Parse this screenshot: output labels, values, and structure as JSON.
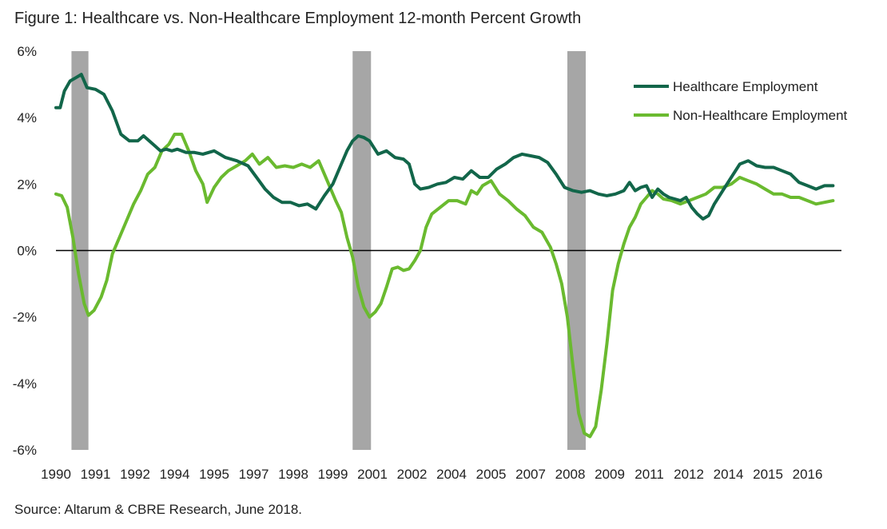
{
  "title": "Figure 1: Healthcare vs. Non-Healthcare Employment 12-month Percent Growth",
  "source": "Source: Altarum & CBRE Research, June 2018.",
  "colors": {
    "healthcare": "#12664a",
    "non_healthcare": "#6aba2f",
    "recession": "#a6a6a6",
    "zero_line": "#000000"
  },
  "chart_data": {
    "type": "line",
    "title": "Figure 1: Healthcare vs. Non-Healthcare Employment 12-month Percent Growth",
    "xlabel": "",
    "ylabel": "",
    "xlim": [
      1990.0,
      2017.8
    ],
    "ylim": [
      -6,
      6
    ],
    "y_ticks": [
      -6,
      -4,
      -2,
      0,
      2,
      4,
      6
    ],
    "y_tick_labels": [
      "-6%",
      "-4%",
      "-2%",
      "0%",
      "2%",
      "4%",
      "6%"
    ],
    "x_tick_labels": [
      "1990",
      "1991",
      "1992",
      "1994",
      "1995",
      "1997",
      "1998",
      "1999",
      "2001",
      "2002",
      "2004",
      "2005",
      "2007",
      "2008",
      "2009",
      "2011",
      "2012",
      "2014",
      "2015",
      "2016"
    ],
    "x_tick_values": [
      1990.0,
      1991.4,
      1992.8,
      1994.2,
      1995.6,
      1997.0,
      1998.4,
      1999.8,
      2001.2,
      2002.6,
      2004.0,
      2005.4,
      2006.8,
      2008.2,
      2009.6,
      2011.0,
      2012.4,
      2013.8,
      2015.2,
      2016.6
    ],
    "grid": false,
    "legend_position": "top-right",
    "recession_bands": [
      [
        2000.5,
        2001.15
      ],
      [
        2008.1,
        2008.75
      ],
      [
        1990.55,
        1991.15
      ]
    ],
    "series": [
      {
        "name": "Healthcare Employment",
        "color": "#12664a",
        "points": [
          [
            1990.0,
            4.3
          ],
          [
            1990.15,
            4.3
          ],
          [
            1990.3,
            4.8
          ],
          [
            1990.5,
            5.1
          ],
          [
            1990.7,
            5.2
          ],
          [
            1990.9,
            5.3
          ],
          [
            1991.1,
            4.9
          ],
          [
            1991.4,
            4.85
          ],
          [
            1991.7,
            4.7
          ],
          [
            1992.0,
            4.2
          ],
          [
            1992.3,
            3.5
          ],
          [
            1992.6,
            3.3
          ],
          [
            1992.9,
            3.3
          ],
          [
            1993.1,
            3.45
          ],
          [
            1993.3,
            3.3
          ],
          [
            1993.5,
            3.15
          ],
          [
            1993.7,
            3.0
          ],
          [
            1993.9,
            3.05
          ],
          [
            1994.1,
            3.0
          ],
          [
            1994.3,
            3.05
          ],
          [
            1994.6,
            2.95
          ],
          [
            1994.9,
            2.95
          ],
          [
            1995.2,
            2.9
          ],
          [
            1995.6,
            3.0
          ],
          [
            1996.0,
            2.8
          ],
          [
            1996.4,
            2.7
          ],
          [
            1996.8,
            2.55
          ],
          [
            1997.1,
            2.2
          ],
          [
            1997.4,
            1.85
          ],
          [
            1997.7,
            1.6
          ],
          [
            1998.0,
            1.45
          ],
          [
            1998.3,
            1.45
          ],
          [
            1998.6,
            1.35
          ],
          [
            1998.9,
            1.4
          ],
          [
            1999.2,
            1.25
          ],
          [
            1999.5,
            1.65
          ],
          [
            1999.8,
            2.0
          ],
          [
            2000.1,
            2.6
          ],
          [
            2000.3,
            3.0
          ],
          [
            2000.5,
            3.3
          ],
          [
            2000.7,
            3.45
          ],
          [
            2000.9,
            3.4
          ],
          [
            2001.1,
            3.3
          ],
          [
            2001.4,
            2.9
          ],
          [
            2001.7,
            3.0
          ],
          [
            2002.0,
            2.8
          ],
          [
            2002.3,
            2.75
          ],
          [
            2002.5,
            2.6
          ],
          [
            2002.7,
            2.0
          ],
          [
            2002.9,
            1.85
          ],
          [
            2003.2,
            1.9
          ],
          [
            2003.5,
            2.0
          ],
          [
            2003.8,
            2.05
          ],
          [
            2004.1,
            2.2
          ],
          [
            2004.4,
            2.15
          ],
          [
            2004.7,
            2.4
          ],
          [
            2005.0,
            2.2
          ],
          [
            2005.3,
            2.2
          ],
          [
            2005.6,
            2.45
          ],
          [
            2005.9,
            2.6
          ],
          [
            2006.2,
            2.8
          ],
          [
            2006.5,
            2.9
          ],
          [
            2006.8,
            2.85
          ],
          [
            2007.1,
            2.8
          ],
          [
            2007.4,
            2.65
          ],
          [
            2007.7,
            2.3
          ],
          [
            2008.0,
            1.9
          ],
          [
            2008.3,
            1.8
          ],
          [
            2008.6,
            1.75
          ],
          [
            2008.9,
            1.8
          ],
          [
            2009.2,
            1.7
          ],
          [
            2009.5,
            1.65
          ],
          [
            2009.8,
            1.7
          ],
          [
            2010.1,
            1.8
          ],
          [
            2010.3,
            2.05
          ],
          [
            2010.5,
            1.8
          ],
          [
            2010.7,
            1.9
          ],
          [
            2010.9,
            1.95
          ],
          [
            2011.1,
            1.6
          ],
          [
            2011.3,
            1.85
          ],
          [
            2011.5,
            1.7
          ],
          [
            2011.7,
            1.6
          ],
          [
            2011.9,
            1.55
          ],
          [
            2012.1,
            1.5
          ],
          [
            2012.3,
            1.6
          ],
          [
            2012.5,
            1.3
          ],
          [
            2012.7,
            1.1
          ],
          [
            2012.9,
            0.95
          ],
          [
            2013.1,
            1.05
          ],
          [
            2013.3,
            1.4
          ],
          [
            2013.6,
            1.8
          ],
          [
            2013.9,
            2.2
          ],
          [
            2014.2,
            2.6
          ],
          [
            2014.5,
            2.7
          ],
          [
            2014.8,
            2.55
          ],
          [
            2015.1,
            2.5
          ],
          [
            2015.4,
            2.5
          ],
          [
            2015.7,
            2.4
          ],
          [
            2016.0,
            2.3
          ],
          [
            2016.3,
            2.05
          ],
          [
            2016.6,
            1.95
          ],
          [
            2016.9,
            1.85
          ],
          [
            2017.2,
            1.95
          ],
          [
            2017.5,
            1.95
          ]
        ]
      },
      {
        "name": "Non-Healthcare Employment",
        "color": "#6aba2f",
        "points": [
          [
            1990.0,
            1.7
          ],
          [
            1990.2,
            1.65
          ],
          [
            1990.4,
            1.3
          ],
          [
            1990.6,
            0.4
          ],
          [
            1990.8,
            -0.7
          ],
          [
            1991.0,
            -1.6
          ],
          [
            1991.15,
            -1.95
          ],
          [
            1991.35,
            -1.8
          ],
          [
            1991.6,
            -1.4
          ],
          [
            1991.8,
            -0.9
          ],
          [
            1992.0,
            -0.1
          ],
          [
            1992.25,
            0.4
          ],
          [
            1992.5,
            0.9
          ],
          [
            1992.75,
            1.4
          ],
          [
            1993.0,
            1.8
          ],
          [
            1993.25,
            2.3
          ],
          [
            1993.5,
            2.5
          ],
          [
            1993.75,
            3.0
          ],
          [
            1994.0,
            3.2
          ],
          [
            1994.2,
            3.5
          ],
          [
            1994.45,
            3.5
          ],
          [
            1994.7,
            3.0
          ],
          [
            1994.95,
            2.4
          ],
          [
            1995.2,
            2.0
          ],
          [
            1995.35,
            1.45
          ],
          [
            1995.6,
            1.9
          ],
          [
            1995.85,
            2.2
          ],
          [
            1996.1,
            2.4
          ],
          [
            1996.4,
            2.55
          ],
          [
            1996.7,
            2.7
          ],
          [
            1996.95,
            2.9
          ],
          [
            1997.2,
            2.6
          ],
          [
            1997.5,
            2.8
          ],
          [
            1997.8,
            2.5
          ],
          [
            1998.1,
            2.55
          ],
          [
            1998.4,
            2.5
          ],
          [
            1998.7,
            2.6
          ],
          [
            1999.0,
            2.5
          ],
          [
            1999.3,
            2.7
          ],
          [
            1999.6,
            2.1
          ],
          [
            1999.9,
            1.5
          ],
          [
            2000.1,
            1.15
          ],
          [
            2000.3,
            0.4
          ],
          [
            2000.5,
            -0.2
          ],
          [
            2000.7,
            -1.1
          ],
          [
            2000.9,
            -1.7
          ],
          [
            2001.1,
            -2.0
          ],
          [
            2001.3,
            -1.85
          ],
          [
            2001.5,
            -1.6
          ],
          [
            2001.7,
            -1.1
          ],
          [
            2001.9,
            -0.55
          ],
          [
            2002.1,
            -0.5
          ],
          [
            2002.3,
            -0.6
          ],
          [
            2002.5,
            -0.55
          ],
          [
            2002.7,
            -0.3
          ],
          [
            2002.9,
            0.0
          ],
          [
            2003.1,
            0.7
          ],
          [
            2003.3,
            1.1
          ],
          [
            2003.6,
            1.3
          ],
          [
            2003.9,
            1.5
          ],
          [
            2004.2,
            1.5
          ],
          [
            2004.5,
            1.4
          ],
          [
            2004.7,
            1.8
          ],
          [
            2004.9,
            1.7
          ],
          [
            2005.1,
            1.95
          ],
          [
            2005.4,
            2.1
          ],
          [
            2005.7,
            1.7
          ],
          [
            2006.0,
            1.5
          ],
          [
            2006.3,
            1.25
          ],
          [
            2006.6,
            1.05
          ],
          [
            2006.9,
            0.7
          ],
          [
            2007.2,
            0.55
          ],
          [
            2007.5,
            0.1
          ],
          [
            2007.7,
            -0.4
          ],
          [
            2007.9,
            -1.0
          ],
          [
            2008.1,
            -2.0
          ],
          [
            2008.3,
            -3.5
          ],
          [
            2008.5,
            -4.9
          ],
          [
            2008.7,
            -5.5
          ],
          [
            2008.9,
            -5.6
          ],
          [
            2009.1,
            -5.3
          ],
          [
            2009.3,
            -4.2
          ],
          [
            2009.5,
            -2.8
          ],
          [
            2009.7,
            -1.2
          ],
          [
            2009.9,
            -0.4
          ],
          [
            2010.1,
            0.2
          ],
          [
            2010.3,
            0.7
          ],
          [
            2010.5,
            1.0
          ],
          [
            2010.7,
            1.4
          ],
          [
            2010.9,
            1.6
          ],
          [
            2011.1,
            1.8
          ],
          [
            2011.3,
            1.7
          ],
          [
            2011.5,
            1.55
          ],
          [
            2011.8,
            1.5
          ],
          [
            2012.1,
            1.4
          ],
          [
            2012.4,
            1.5
          ],
          [
            2012.7,
            1.6
          ],
          [
            2013.0,
            1.7
          ],
          [
            2013.3,
            1.9
          ],
          [
            2013.6,
            1.9
          ],
          [
            2013.9,
            2.0
          ],
          [
            2014.2,
            2.2
          ],
          [
            2014.5,
            2.1
          ],
          [
            2014.8,
            2.0
          ],
          [
            2015.1,
            1.85
          ],
          [
            2015.4,
            1.7
          ],
          [
            2015.7,
            1.7
          ],
          [
            2016.0,
            1.6
          ],
          [
            2016.3,
            1.6
          ],
          [
            2016.6,
            1.5
          ],
          [
            2016.9,
            1.4
          ],
          [
            2017.2,
            1.45
          ],
          [
            2017.5,
            1.5
          ]
        ]
      }
    ]
  }
}
